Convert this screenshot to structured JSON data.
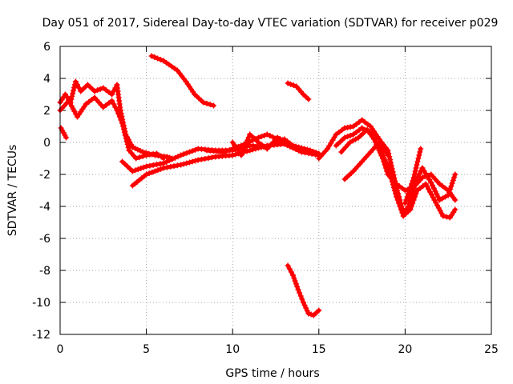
{
  "chart_data": {
    "type": "scatter",
    "title": "Day 051 of 2017, Sidereal Day-to-day VTEC variation (SDTVAR) for receiver p029",
    "xlabel": "GPS time / hours",
    "ylabel": "SDTVAR / TECUs",
    "xlim": [
      0,
      25
    ],
    "ylim": [
      -12,
      6
    ],
    "xticks": [
      0,
      5,
      10,
      15,
      20,
      25
    ],
    "yticks": [
      -12,
      -10,
      -8,
      -6,
      -4,
      -2,
      0,
      2,
      4,
      6
    ],
    "grid": true,
    "marker": "+",
    "series_color": "#ff0000",
    "segments": [
      {
        "name": "early-band",
        "points": [
          [
            0.0,
            2.5
          ],
          [
            0.3,
            3.0
          ],
          [
            0.6,
            2.5
          ],
          [
            0.9,
            3.8
          ],
          [
            1.2,
            3.2
          ],
          [
            1.6,
            3.6
          ],
          [
            2.0,
            3.2
          ],
          [
            2.5,
            3.4
          ],
          [
            3.0,
            3.0
          ],
          [
            3.3,
            3.6
          ],
          [
            3.5,
            2.0
          ],
          [
            3.8,
            0.5
          ],
          [
            4.2,
            -0.3
          ],
          [
            4.8,
            -0.6
          ],
          [
            5.5,
            -0.8
          ],
          [
            6.2,
            -0.9
          ],
          [
            6.5,
            -1.0
          ]
        ]
      },
      {
        "name": "early-band-lower",
        "points": [
          [
            0.0,
            2.0
          ],
          [
            0.5,
            2.6
          ],
          [
            1.0,
            1.6
          ],
          [
            1.5,
            2.4
          ],
          [
            2.0,
            2.8
          ],
          [
            2.5,
            2.2
          ],
          [
            3.0,
            2.6
          ],
          [
            3.3,
            2.0
          ],
          [
            3.6,
            1.2
          ],
          [
            4.0,
            -0.5
          ],
          [
            4.4,
            -1.0
          ],
          [
            5.0,
            -0.8
          ],
          [
            5.6,
            -0.7
          ],
          [
            6.0,
            -1.0
          ]
        ]
      },
      {
        "name": "early-small",
        "points": [
          [
            0.05,
            0.9
          ],
          [
            0.2,
            0.6
          ],
          [
            0.35,
            0.3
          ]
        ]
      },
      {
        "name": "midday-upper",
        "points": [
          [
            3.6,
            -1.2
          ],
          [
            4.2,
            -1.8
          ],
          [
            5.0,
            -1.5
          ],
          [
            6.0,
            -1.3
          ],
          [
            7.0,
            -0.8
          ],
          [
            8.0,
            -0.4
          ],
          [
            9.0,
            -0.5
          ],
          [
            10.0,
            -0.5
          ],
          [
            11.0,
            -0.2
          ],
          [
            12.0,
            -0.3
          ],
          [
            13.0,
            0.2
          ],
          [
            13.5,
            -0.2
          ],
          [
            14.5,
            -0.5
          ],
          [
            15.0,
            -0.7
          ]
        ]
      },
      {
        "name": "midday-lower",
        "points": [
          [
            4.2,
            -2.7
          ],
          [
            5.0,
            -2.0
          ],
          [
            6.0,
            -1.6
          ],
          [
            7.0,
            -1.4
          ],
          [
            8.0,
            -1.1
          ],
          [
            9.0,
            -0.9
          ],
          [
            10.0,
            -0.8
          ],
          [
            11.0,
            -0.5
          ],
          [
            12.0,
            -0.2
          ],
          [
            13.0,
            -0.1
          ],
          [
            14.0,
            -0.6
          ],
          [
            15.0,
            -0.8
          ]
        ]
      },
      {
        "name": "midday-mid",
        "points": [
          [
            8.5,
            -0.5
          ],
          [
            9.5,
            -0.6
          ],
          [
            10.5,
            -0.2
          ],
          [
            11.5,
            0.3
          ],
          [
            12.0,
            0.5
          ],
          [
            13.0,
            0.0
          ],
          [
            14.0,
            -0.4
          ],
          [
            14.5,
            -0.6
          ]
        ]
      },
      {
        "name": "midday-spike",
        "points": [
          [
            10.0,
            0.0
          ],
          [
            10.5,
            -0.8
          ],
          [
            11.0,
            0.5
          ],
          [
            11.5,
            0.0
          ],
          [
            12.0,
            -0.4
          ],
          [
            12.6,
            0.3
          ],
          [
            13.2,
            0.0
          ]
        ]
      },
      {
        "name": "top-arc",
        "points": [
          [
            5.3,
            5.4
          ],
          [
            6.0,
            5.1
          ],
          [
            6.8,
            4.5
          ],
          [
            7.3,
            3.8
          ],
          [
            7.8,
            3.0
          ],
          [
            8.3,
            2.5
          ],
          [
            8.9,
            2.3
          ]
        ]
      },
      {
        "name": "arc-13h",
        "points": [
          [
            13.2,
            3.7
          ],
          [
            13.7,
            3.5
          ],
          [
            14.1,
            3.0
          ],
          [
            14.4,
            2.7
          ]
        ]
      },
      {
        "name": "deep-dip",
        "points": [
          [
            13.2,
            -7.7
          ],
          [
            13.5,
            -8.3
          ],
          [
            13.8,
            -9.2
          ],
          [
            14.1,
            -10.0
          ],
          [
            14.4,
            -10.7
          ],
          [
            14.7,
            -10.8
          ],
          [
            15.0,
            -10.5
          ]
        ]
      },
      {
        "name": "evening-1",
        "points": [
          [
            15.0,
            -1.0
          ],
          [
            15.5,
            -0.4
          ],
          [
            16.0,
            0.5
          ],
          [
            16.5,
            0.9
          ],
          [
            17.0,
            1.0
          ],
          [
            17.5,
            1.4
          ],
          [
            18.0,
            1.0
          ],
          [
            18.5,
            0.2
          ],
          [
            19.0,
            -0.5
          ],
          [
            19.5,
            -2.8
          ],
          [
            19.9,
            -4.4
          ],
          [
            20.2,
            -4.0
          ],
          [
            20.6,
            -2.5
          ],
          [
            21.0,
            -1.6
          ],
          [
            21.5,
            -2.5
          ],
          [
            22.0,
            -3.6
          ],
          [
            22.5,
            -3.3
          ],
          [
            22.9,
            -2.0
          ]
        ]
      },
      {
        "name": "evening-2",
        "points": [
          [
            16.0,
            -0.2
          ],
          [
            16.5,
            0.3
          ],
          [
            17.0,
            0.5
          ],
          [
            17.5,
            0.9
          ],
          [
            18.0,
            0.6
          ],
          [
            18.5,
            -0.3
          ],
          [
            19.0,
            -1.5
          ],
          [
            19.5,
            -3.4
          ],
          [
            19.9,
            -4.6
          ],
          [
            20.3,
            -4.2
          ],
          [
            20.7,
            -3.0
          ],
          [
            21.2,
            -2.6
          ],
          [
            21.7,
            -3.6
          ],
          [
            22.2,
            -4.6
          ],
          [
            22.6,
            -4.7
          ],
          [
            22.9,
            -4.2
          ]
        ]
      },
      {
        "name": "evening-3",
        "points": [
          [
            16.3,
            -0.6
          ],
          [
            16.8,
            0.0
          ],
          [
            17.3,
            0.3
          ],
          [
            17.8,
            0.8
          ],
          [
            18.2,
            0.2
          ],
          [
            18.7,
            -1.0
          ],
          [
            19.0,
            -2.0
          ],
          [
            19.5,
            -2.6
          ],
          [
            20.0,
            -3.0
          ],
          [
            20.5,
            -2.8
          ],
          [
            21.0,
            -2.2
          ],
          [
            21.5,
            -2.0
          ],
          [
            22.0,
            -2.6
          ],
          [
            22.5,
            -3.0
          ],
          [
            22.9,
            -3.6
          ]
        ]
      },
      {
        "name": "evening-4",
        "points": [
          [
            16.5,
            -2.3
          ],
          [
            17.0,
            -1.8
          ],
          [
            17.5,
            -1.2
          ],
          [
            18.0,
            -0.6
          ],
          [
            18.5,
            0.0
          ],
          [
            19.0,
            -0.8
          ]
        ]
      },
      {
        "name": "evening-5",
        "points": [
          [
            20.0,
            -3.8
          ],
          [
            20.5,
            -2.2
          ],
          [
            20.9,
            -0.4
          ]
        ]
      }
    ]
  }
}
